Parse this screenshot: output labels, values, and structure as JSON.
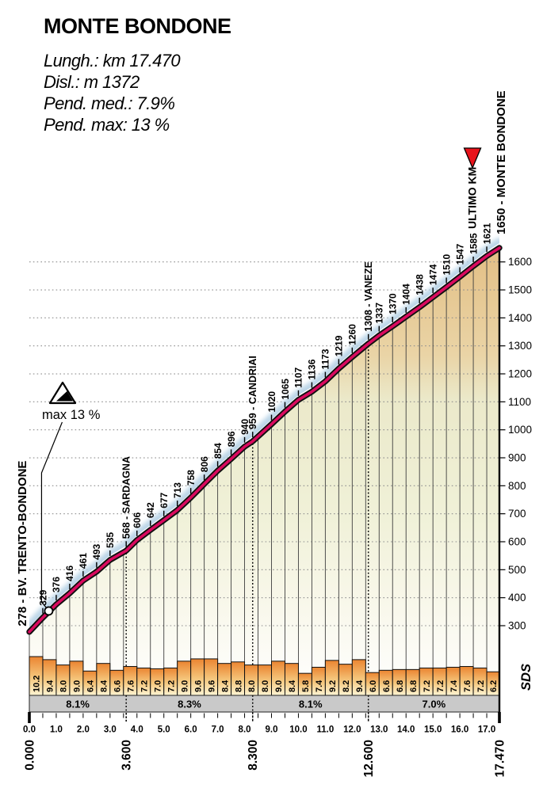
{
  "header": {
    "title": "MONTE BONDONE",
    "stats": [
      "Lungh.: km 17.470",
      "Disl.: m 1372",
      "Pend. med.: 7.9%",
      "Pend. max: 13 %"
    ]
  },
  "chart_data": {
    "type": "area",
    "title": "MONTE BONDONE",
    "xlabel": "",
    "ylabel": "",
    "x_range_km": [
      0,
      17.47
    ],
    "y_axis": {
      "min": 300,
      "max": 1600,
      "step": 100
    },
    "profile": {
      "start_label": "278 - BV. TRENTO-BONDONE",
      "summit_label": "1650 - MONTE BONDONE",
      "points": [
        {
          "km": 0,
          "m": 278
        },
        {
          "km": 0.5,
          "m": 329
        },
        {
          "km": 1,
          "m": 376
        },
        {
          "km": 1.5,
          "m": 416
        },
        {
          "km": 2,
          "m": 461
        },
        {
          "km": 2.5,
          "m": 493
        },
        {
          "km": 3,
          "m": 535
        },
        {
          "km": 3.6,
          "m": 568
        },
        {
          "km": 4,
          "m": 606
        },
        {
          "km": 4.5,
          "m": 642
        },
        {
          "km": 5,
          "m": 677
        },
        {
          "km": 5.5,
          "m": 713
        },
        {
          "km": 6,
          "m": 758
        },
        {
          "km": 6.5,
          "m": 806
        },
        {
          "km": 7,
          "m": 854
        },
        {
          "km": 7.5,
          "m": 896
        },
        {
          "km": 8,
          "m": 940
        },
        {
          "km": 8.3,
          "m": 959
        },
        {
          "km": 9,
          "m": 1020
        },
        {
          "km": 9.5,
          "m": 1065
        },
        {
          "km": 10,
          "m": 1107
        },
        {
          "km": 10.5,
          "m": 1136
        },
        {
          "km": 11,
          "m": 1173
        },
        {
          "km": 11.5,
          "m": 1219
        },
        {
          "km": 12,
          "m": 1260
        },
        {
          "km": 12.6,
          "m": 1308
        },
        {
          "km": 13,
          "m": 1337
        },
        {
          "km": 13.5,
          "m": 1370
        },
        {
          "km": 14,
          "m": 1404
        },
        {
          "km": 14.5,
          "m": 1438
        },
        {
          "km": 15,
          "m": 1474
        },
        {
          "km": 15.5,
          "m": 1510
        },
        {
          "km": 16,
          "m": 1547
        },
        {
          "km": 16.5,
          "m": 1585
        },
        {
          "km": 17,
          "m": 1621
        },
        {
          "km": 17.47,
          "m": 1650
        }
      ],
      "labels": [
        {
          "km": 0.5,
          "m": 329,
          "text": "329"
        },
        {
          "km": 1,
          "m": 376,
          "text": "376"
        },
        {
          "km": 1.5,
          "m": 416,
          "text": "416"
        },
        {
          "km": 2,
          "m": 461,
          "text": "461"
        },
        {
          "km": 2.5,
          "m": 493,
          "text": "493"
        },
        {
          "km": 3,
          "m": 535,
          "text": "535"
        },
        {
          "km": 3.6,
          "m": 568,
          "text": "568 - SARDAGNA",
          "landmark": true
        },
        {
          "km": 4,
          "m": 606,
          "text": "606"
        },
        {
          "km": 4.5,
          "m": 642,
          "text": "642"
        },
        {
          "km": 5,
          "m": 677,
          "text": "677"
        },
        {
          "km": 5.5,
          "m": 713,
          "text": "713"
        },
        {
          "km": 6,
          "m": 758,
          "text": "758"
        },
        {
          "km": 6.5,
          "m": 806,
          "text": "806"
        },
        {
          "km": 7,
          "m": 854,
          "text": "854"
        },
        {
          "km": 7.5,
          "m": 896,
          "text": "896"
        },
        {
          "km": 8,
          "m": 940,
          "text": "940"
        },
        {
          "km": 8.3,
          "m": 959,
          "text": "959 - CANDRIAI",
          "landmark": true
        },
        {
          "km": 9,
          "m": 1020,
          "text": "1020"
        },
        {
          "km": 9.5,
          "m": 1065,
          "text": "1065"
        },
        {
          "km": 10,
          "m": 1107,
          "text": "1107"
        },
        {
          "km": 10.5,
          "m": 1136,
          "text": "1136"
        },
        {
          "km": 11,
          "m": 1173,
          "text": "1173"
        },
        {
          "km": 11.5,
          "m": 1219,
          "text": "1219"
        },
        {
          "km": 12,
          "m": 1260,
          "text": "1260"
        },
        {
          "km": 12.6,
          "m": 1308,
          "text": "1308 - VANEZE",
          "landmark": true
        },
        {
          "km": 13,
          "m": 1337,
          "text": "1337"
        },
        {
          "km": 13.5,
          "m": 1370,
          "text": "1370"
        },
        {
          "km": 14,
          "m": 1404,
          "text": "1404"
        },
        {
          "km": 14.5,
          "m": 1438,
          "text": "1438"
        },
        {
          "km": 15,
          "m": 1474,
          "text": "1474"
        },
        {
          "km": 15.5,
          "m": 1510,
          "text": "1510"
        },
        {
          "km": 16,
          "m": 1547,
          "text": "1547"
        },
        {
          "km": 16.5,
          "m": 1585,
          "text": "1585"
        },
        {
          "km": 17,
          "m": 1621,
          "text": "1621"
        }
      ]
    },
    "landmarks": [
      {
        "km": 3.6,
        "name": "SARDAGNA"
      },
      {
        "km": 8.3,
        "name": "CANDRIAI"
      },
      {
        "km": 12.6,
        "name": "VANEZE"
      }
    ],
    "gradient_bars": {
      "interval_km": 0.5,
      "values": [
        10.2,
        9.4,
        8.0,
        9.0,
        6.4,
        8.4,
        6.6,
        7.6,
        7.2,
        7.0,
        7.2,
        9.0,
        9.6,
        9.6,
        8.4,
        8.8,
        8.0,
        8.0,
        9.0,
        8.4,
        5.8,
        7.4,
        9.2,
        8.2,
        9.4,
        6.0,
        6.6,
        6.8,
        6.8,
        7.2,
        7.2,
        7.4,
        7.6,
        7.2,
        6.2
      ]
    },
    "sections": [
      {
        "from_km": 0,
        "to_km": 3.6,
        "label": "8.1%"
      },
      {
        "from_km": 3.6,
        "to_km": 8.3,
        "label": "8.3%"
      },
      {
        "from_km": 8.3,
        "to_km": 12.6,
        "label": "8.1%"
      },
      {
        "from_km": 12.6,
        "to_km": 17.47,
        "label": "7.0%"
      }
    ],
    "boundary_labels": [
      {
        "km": 0,
        "label": "0.000"
      },
      {
        "km": 3.6,
        "label": "3.600"
      },
      {
        "km": 8.3,
        "label": "8.300"
      },
      {
        "km": 12.6,
        "label": "12.600"
      },
      {
        "km": 17.47,
        "label": "17.470"
      }
    ],
    "x_ticks": [
      "0.0",
      "1.0",
      "2.0",
      "3.0",
      "4.0",
      "5.0",
      "6.0",
      "7.0",
      "8.0",
      "9.0",
      "10.0",
      "11.0",
      "12.0",
      "13.0",
      "14.0",
      "15.0",
      "16.0",
      "17.0"
    ],
    "ultimo_km": {
      "label": "ULTIMO KM",
      "km": 16.47
    },
    "max_gradient": {
      "label": "max 13 %",
      "km": 0.72
    },
    "branding": "SDS"
  },
  "colors": {
    "profile_line": "#da0a5e",
    "line_casing": "#101010",
    "sky_glow": "#b7d3e6",
    "area_fill_stops": [
      {
        "at": 0,
        "c": "#e3bf85"
      },
      {
        "at": 0.24,
        "c": "#ead4a6"
      },
      {
        "at": 0.34,
        "c": "#ebe9ca"
      },
      {
        "at": 0.6,
        "c": "#f0f1d8"
      },
      {
        "at": 0.78,
        "c": "#f8f7e9"
      },
      {
        "at": 1,
        "c": "#ffffff"
      }
    ],
    "bar_gradient": [
      "#eb8531",
      "#f5c87e",
      "#fdf4d3"
    ],
    "band_gray": "#c9c9c9",
    "gridline": "#8f8f8f",
    "vline": "#3e3e3e",
    "ultimo_red": "#e8131b"
  }
}
